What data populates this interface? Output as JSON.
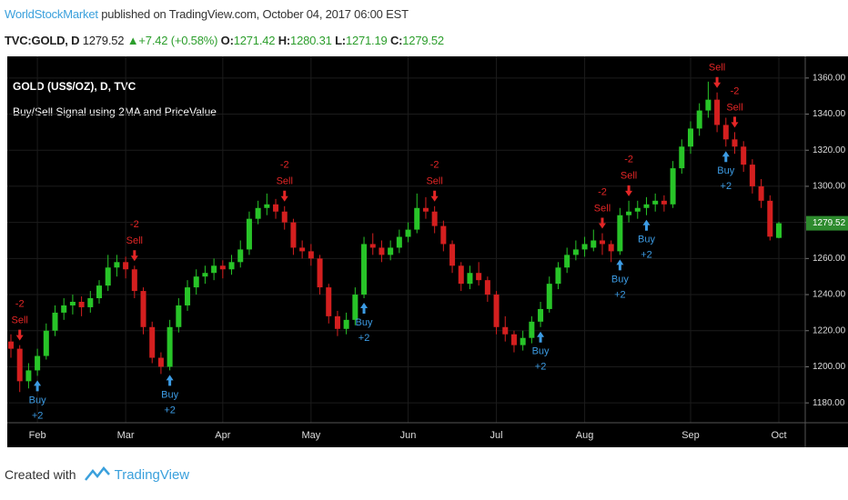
{
  "header": {
    "author": "WorldStockMarket",
    "published": "published on TradingView.com, October 04, 2017 06:00 EST",
    "symbol": "TVC:GOLD, D",
    "arrow": "▲",
    "change": "+7.42 (+0.58%)",
    "o_label": "O:",
    "h_label": "H:",
    "l_label": "L:",
    "c_label": "C:"
  },
  "chart_data": {
    "type": "candlestick",
    "title": "GOLD (US$/OZ), D, TVC",
    "subtitle": "Buy/Sell Signal using 2MA and PriceValue",
    "ohlc": [
      [
        1214,
        1218,
        1205,
        1210
      ],
      [
        1210,
        1212,
        1186,
        1192
      ],
      [
        1192,
        1202,
        1188,
        1198
      ],
      [
        1198,
        1210,
        1195,
        1206
      ],
      [
        1206,
        1224,
        1204,
        1220
      ],
      [
        1220,
        1234,
        1217,
        1230
      ],
      [
        1230,
        1238,
        1226,
        1234
      ],
      [
        1234,
        1240,
        1229,
        1236
      ],
      [
        1236,
        1239,
        1228,
        1233
      ],
      [
        1233,
        1242,
        1230,
        1238
      ],
      [
        1238,
        1248,
        1235,
        1245
      ],
      [
        1245,
        1262,
        1242,
        1255
      ],
      [
        1255,
        1262,
        1250,
        1258
      ],
      [
        1258,
        1261,
        1249,
        1254
      ],
      [
        1254,
        1256,
        1238,
        1242
      ],
      [
        1242,
        1244,
        1218,
        1222
      ],
      [
        1222,
        1225,
        1202,
        1205
      ],
      [
        1205,
        1208,
        1196,
        1200
      ],
      [
        1200,
        1226,
        1198,
        1222
      ],
      [
        1222,
        1238,
        1219,
        1234
      ],
      [
        1234,
        1248,
        1231,
        1244
      ],
      [
        1244,
        1254,
        1240,
        1250
      ],
      [
        1250,
        1256,
        1246,
        1252
      ],
      [
        1252,
        1260,
        1248,
        1256
      ],
      [
        1256,
        1259,
        1249,
        1254
      ],
      [
        1254,
        1262,
        1251,
        1258
      ],
      [
        1258,
        1270,
        1255,
        1265
      ],
      [
        1265,
        1286,
        1262,
        1282
      ],
      [
        1282,
        1292,
        1279,
        1288
      ],
      [
        1288,
        1296,
        1284,
        1290
      ],
      [
        1290,
        1293,
        1282,
        1286
      ],
      [
        1286,
        1289,
        1276,
        1280
      ],
      [
        1280,
        1282,
        1262,
        1266
      ],
      [
        1266,
        1270,
        1260,
        1264
      ],
      [
        1264,
        1268,
        1256,
        1260
      ],
      [
        1260,
        1262,
        1240,
        1244
      ],
      [
        1244,
        1246,
        1224,
        1228
      ],
      [
        1228,
        1231,
        1217,
        1221
      ],
      [
        1221,
        1230,
        1218,
        1226
      ],
      [
        1226,
        1244,
        1223,
        1240
      ],
      [
        1240,
        1272,
        1238,
        1268
      ],
      [
        1268,
        1274,
        1262,
        1266
      ],
      [
        1266,
        1270,
        1258,
        1262
      ],
      [
        1262,
        1270,
        1259,
        1266
      ],
      [
        1266,
        1276,
        1263,
        1272
      ],
      [
        1272,
        1280,
        1269,
        1276
      ],
      [
        1276,
        1296,
        1274,
        1288
      ],
      [
        1288,
        1294,
        1282,
        1286
      ],
      [
        1286,
        1289,
        1274,
        1278
      ],
      [
        1278,
        1281,
        1264,
        1268
      ],
      [
        1268,
        1270,
        1252,
        1256
      ],
      [
        1256,
        1258,
        1242,
        1246
      ],
      [
        1246,
        1256,
        1243,
        1252
      ],
      [
        1252,
        1258,
        1245,
        1248
      ],
      [
        1248,
        1250,
        1236,
        1240
      ],
      [
        1240,
        1242,
        1218,
        1222
      ],
      [
        1222,
        1228,
        1214,
        1218
      ],
      [
        1218,
        1220,
        1208,
        1212
      ],
      [
        1212,
        1220,
        1209,
        1216
      ],
      [
        1216,
        1228,
        1213,
        1225
      ],
      [
        1225,
        1236,
        1222,
        1232
      ],
      [
        1232,
        1250,
        1230,
        1246
      ],
      [
        1246,
        1258,
        1243,
        1255
      ],
      [
        1255,
        1266,
        1252,
        1262
      ],
      [
        1262,
        1270,
        1259,
        1265
      ],
      [
        1265,
        1272,
        1261,
        1268
      ],
      [
        1266,
        1276,
        1264,
        1270
      ],
      [
        1270,
        1274,
        1262,
        1268
      ],
      [
        1268,
        1270,
        1258,
        1264
      ],
      [
        1264,
        1288,
        1262,
        1284
      ],
      [
        1284,
        1292,
        1280,
        1286
      ],
      [
        1286,
        1292,
        1282,
        1288
      ],
      [
        1288,
        1294,
        1284,
        1290
      ],
      [
        1290,
        1296,
        1286,
        1292
      ],
      [
        1292,
        1295,
        1286,
        1290
      ],
      [
        1290,
        1314,
        1288,
        1310
      ],
      [
        1310,
        1326,
        1307,
        1322
      ],
      [
        1322,
        1336,
        1318,
        1332
      ],
      [
        1332,
        1346,
        1328,
        1342
      ],
      [
        1342,
        1358,
        1338,
        1348
      ],
      [
        1348,
        1352,
        1330,
        1334
      ],
      [
        1334,
        1338,
        1322,
        1326
      ],
      [
        1326,
        1330,
        1318,
        1322
      ],
      [
        1322,
        1325,
        1308,
        1312
      ],
      [
        1312,
        1315,
        1296,
        1300
      ],
      [
        1300,
        1304,
        1288,
        1292
      ],
      [
        1292,
        1295,
        1270,
        1272.1
      ],
      [
        1271.42,
        1280.31,
        1271.19,
        1279.52
      ]
    ],
    "categories": [
      null,
      null,
      null,
      "Feb",
      null,
      null,
      null,
      null,
      null,
      null,
      null,
      null,
      null,
      "Mar",
      null,
      null,
      null,
      null,
      null,
      null,
      null,
      null,
      null,
      null,
      "Apr",
      null,
      null,
      null,
      null,
      null,
      null,
      null,
      null,
      null,
      "May",
      null,
      null,
      null,
      null,
      null,
      null,
      null,
      null,
      null,
      null,
      "Jun",
      null,
      null,
      null,
      null,
      null,
      null,
      null,
      null,
      null,
      "Jul",
      null,
      null,
      null,
      null,
      null,
      null,
      null,
      null,
      null,
      "Aug",
      null,
      null,
      null,
      null,
      null,
      null,
      null,
      null,
      null,
      null,
      null,
      "Sep",
      null,
      null,
      null,
      null,
      null,
      null,
      null,
      null,
      null,
      "Oct"
    ],
    "ylim": [
      1169,
      1372
    ],
    "yticks": [
      {
        "value": 1180,
        "label": "1180.00"
      },
      {
        "value": 1200,
        "label": "1200.00"
      },
      {
        "value": 1220,
        "label": "1220.00"
      },
      {
        "value": 1240,
        "label": "1240.00"
      },
      {
        "value": 1260,
        "label": "1260.00"
      },
      {
        "value": 1280,
        "label": "1280.00"
      },
      {
        "value": 1300,
        "label": "1300.00"
      },
      {
        "value": 1320,
        "label": "1320.00"
      },
      {
        "value": 1340,
        "label": "1340.00"
      },
      {
        "value": 1360,
        "label": "1360.00"
      }
    ],
    "grid": true,
    "up_color": "#28c428",
    "down_color": "#d41f1f",
    "buy_color": "#3c9be3",
    "sell_color": "#e32626",
    "signals": [
      {
        "label": "Sell",
        "value": -2,
        "x": 1
      },
      {
        "label": "Buy",
        "value": 2,
        "value_label": "+2",
        "x": 3
      },
      {
        "label": "Sell",
        "value": -2,
        "x": 14
      },
      {
        "label": "Buy",
        "value": 2,
        "value_label": "+2",
        "x": 18
      },
      {
        "label": "Sell",
        "value": -2,
        "x": 31
      },
      {
        "label": "Buy",
        "value": 2,
        "value_label": "+2",
        "x": 40
      },
      {
        "label": "Sell",
        "value": -2,
        "x": 48
      },
      {
        "label": "Buy",
        "value": 2,
        "value_label": "+2",
        "x": 60
      },
      {
        "label": "Sell",
        "value": -2,
        "x": 67
      },
      {
        "label": "Buy",
        "value": 2,
        "value_label": "+2",
        "x": 69
      },
      {
        "label": "Sell",
        "value": -2,
        "x": 70
      },
      {
        "label": "Buy",
        "value": 2,
        "value_label": "+2",
        "x": 72
      },
      {
        "label": "Sell",
        "value": -2,
        "x": 80
      },
      {
        "label": "Buy",
        "value": 2,
        "value_label": "+2",
        "x": 81
      },
      {
        "label": "Sell",
        "value": -2,
        "x": 82
      }
    ]
  },
  "footer": {
    "created": "Created with",
    "brand": "TradingView"
  }
}
